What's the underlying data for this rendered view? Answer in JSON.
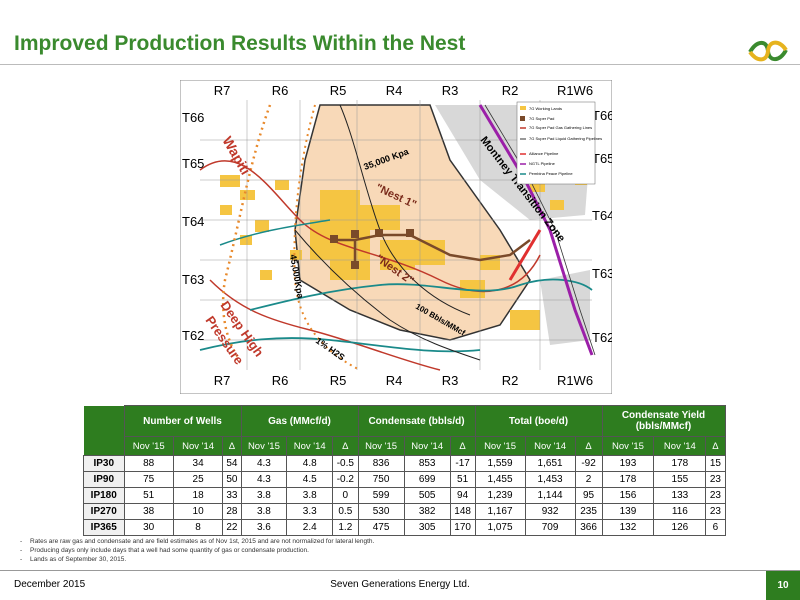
{
  "header": {
    "title": "Improved Production Results Within the Nest"
  },
  "map": {
    "top_ranges": [
      "R7",
      "R6",
      "R5",
      "R4",
      "R3",
      "R2",
      "R1W6"
    ],
    "bottom_ranges": [
      "R7",
      "R6",
      "R5",
      "R4",
      "R3",
      "R2",
      "R1W6"
    ],
    "left_townships": [
      "T66",
      "T65",
      "T64",
      "T63",
      "T62"
    ],
    "right_townships": [
      "T66",
      "T65",
      "T64",
      "T63",
      "T62"
    ],
    "labels": {
      "wapiti": "Wapiti",
      "montney": "Montney Transition Zone",
      "kpa35": "35,000 Kpa",
      "nest1": "\"Nest 1\"",
      "kpa45": "45,000Kpa",
      "nest2": "\"Nest 2\"",
      "bbls": "100 Bbls/MMcf",
      "deep": "Deep High",
      "pressure": "Pressure",
      "h2s": "1% H2S"
    },
    "legend": [
      {
        "label": "7G Working Lands",
        "color": "#f5c542"
      },
      {
        "label": "7G Super Pad",
        "color": "#7a4a2a"
      },
      {
        "label": "7G Super Pad Gas Gathering Lines",
        "color": "#c0392b"
      },
      {
        "label": "7G Super Pad Liquid Gathering Pipelines",
        "color": "#333333"
      },
      {
        "label": "Alliance Pipeline",
        "color": "#e03030"
      },
      {
        "label": "NGTL Pipeline",
        "color": "#a020a0"
      },
      {
        "label": "Pembina Peace Pipeline",
        "color": "#1a8a8a"
      }
    ],
    "colors": {
      "lands": "#f5c542",
      "nest": "#f8d9b8",
      "grey": "#d8d8d8",
      "pad": "#7a4a2a",
      "alliance": "#e03030",
      "ngtl": "#9b1fa8",
      "pembina": "#1a8a8a",
      "orange": "#e8892b"
    }
  },
  "table": {
    "groups": [
      "Number of Wells",
      "Gas (MMcf/d)",
      "Condensate (bbls/d)",
      "Total (boe/d)",
      "Condensate Yield (bbls/MMcf)"
    ],
    "subheaders": [
      "Nov '15",
      "Nov '14",
      "Δ"
    ],
    "rows": [
      {
        "label": "IP30",
        "values": [
          "88",
          "34",
          "54",
          "4.3",
          "4.8",
          "-0.5",
          "836",
          "853",
          "-17",
          "1,559",
          "1,651",
          "-92",
          "193",
          "178",
          "15"
        ]
      },
      {
        "label": "IP90",
        "values": [
          "75",
          "25",
          "50",
          "4.3",
          "4.5",
          "-0.2",
          "750",
          "699",
          "51",
          "1,455",
          "1,453",
          "2",
          "178",
          "155",
          "23"
        ]
      },
      {
        "label": "IP180",
        "values": [
          "51",
          "18",
          "33",
          "3.8",
          "3.8",
          "0",
          "599",
          "505",
          "94",
          "1,239",
          "1,144",
          "95",
          "156",
          "133",
          "23"
        ]
      },
      {
        "label": "IP270",
        "values": [
          "38",
          "10",
          "28",
          "3.8",
          "3.3",
          "0.5",
          "530",
          "382",
          "148",
          "1,167",
          "932",
          "235",
          "139",
          "116",
          "23"
        ]
      },
      {
        "label": "IP365",
        "values": [
          "30",
          "8",
          "22",
          "3.6",
          "2.4",
          "1.2",
          "475",
          "305",
          "170",
          "1,075",
          "709",
          "366",
          "132",
          "126",
          "6"
        ]
      }
    ]
  },
  "notes": [
    "Rates are raw gas and condensate and are field estimates as of Nov 1st, 2015 and are not normalized for lateral length.",
    "Producing days only include days that a well had some quantity of gas or condensate production.",
    "Lands as of September 30, 2015."
  ],
  "footer": {
    "date": "December 2015",
    "company": "Seven Generations Energy Ltd.",
    "page": "10"
  }
}
